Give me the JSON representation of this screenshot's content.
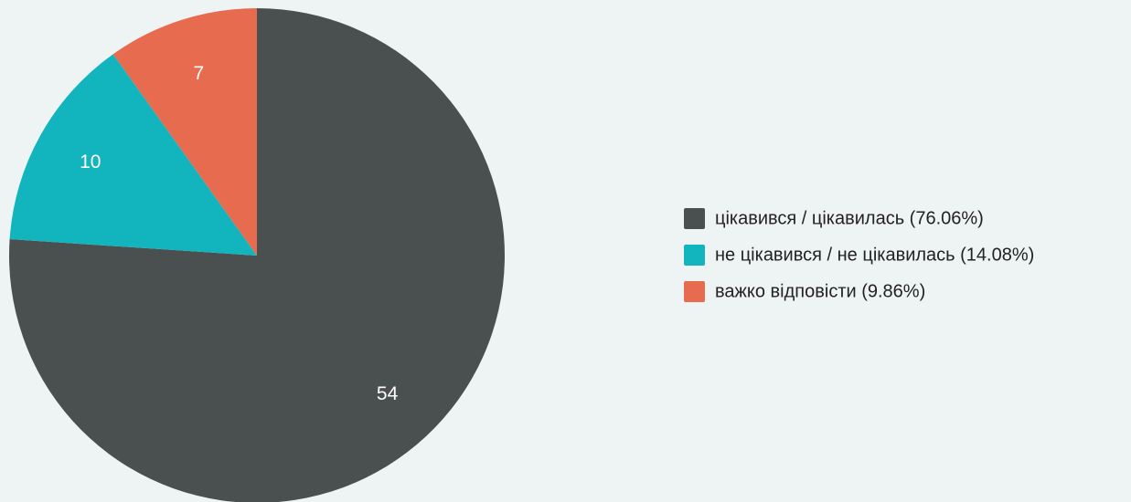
{
  "chart_data": {
    "type": "pie",
    "categories": [
      "цікавився / цікавилась (76.06%)",
      "не цікавився / не цікавилась (14.08%)",
      "важко відповісти (9.86%)"
    ],
    "values": [
      54,
      10,
      7
    ],
    "colors": [
      "#4a4f4f",
      "#12b5bd",
      "#e76b4f"
    ],
    "legend": "right"
  }
}
